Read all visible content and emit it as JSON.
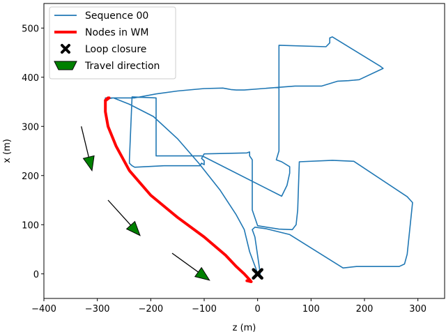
{
  "chart_data": {
    "type": "line",
    "title": "",
    "xlabel": "z (m)",
    "ylabel": "x (m)",
    "xlim": [
      -400,
      350
    ],
    "ylim": [
      -50,
      550
    ],
    "xticks": [
      -400,
      -300,
      -200,
      -100,
      0,
      100,
      200,
      300
    ],
    "yticks": [
      0,
      100,
      200,
      300,
      400,
      500
    ],
    "grid": false,
    "legend_position": "top-left",
    "colors": {
      "sequence": "#1f77b4",
      "nodes": "#ff0000",
      "loop": "#000000",
      "arrow_fill": "#008000",
      "arrow_stroke": "#000000"
    },
    "legend": [
      {
        "label": "Sequence 00",
        "kind": "line"
      },
      {
        "label": "Nodes in WM",
        "kind": "thick-line"
      },
      {
        "label": "Loop closure",
        "kind": "x-marker"
      },
      {
        "label": "Travel direction",
        "kind": "patch"
      }
    ],
    "series": [
      {
        "name": "Sequence 00",
        "x": [
          0,
          -3,
          -15,
          -25,
          -40,
          -70,
          -110,
          -150,
          -195,
          -240,
          -270,
          -285,
          -285,
          -275,
          -230,
          -190,
          -150,
          -100,
          -65,
          -55,
          -50,
          -40,
          -30,
          -25,
          70,
          120,
          150,
          170,
          190,
          235,
          230,
          140,
          135,
          135,
          128,
          40,
          40,
          35,
          40,
          45,
          60,
          60,
          55,
          45,
          -100,
          -105,
          -190,
          -190,
          -235,
          -240,
          -240,
          -235,
          -230,
          -175,
          -108,
          -105,
          -100,
          -100,
          -105,
          -100,
          -20,
          -15,
          -15,
          -10,
          -10,
          0,
          40,
          65,
          72,
          75,
          78,
          140,
          180,
          280,
          290,
          280,
          275,
          265,
          185,
          160,
          60,
          15,
          -5,
          -10,
          -5,
          5
        ],
        "y": [
          0,
          10,
          45,
          90,
          120,
          170,
          225,
          275,
          320,
          345,
          358,
          355,
          358,
          358,
          358,
          366,
          372,
          377,
          378,
          376,
          375,
          374,
          374,
          374,
          382,
          382,
          392,
          393,
          395,
          418,
          422,
          482,
          480,
          470,
          462,
          465,
          250,
          232,
          230,
          228,
          218,
          205,
          180,
          158,
          238,
          240,
          240,
          358,
          360,
          232,
          225,
          220,
          217,
          220,
          220,
          225,
          222,
          230,
          235,
          244,
          246,
          248,
          240,
          232,
          130,
          98,
          91,
          90,
          100,
          130,
          228,
          231,
          229,
          157,
          145,
          40,
          20,
          15,
          15,
          12,
          80,
          92,
          95,
          90,
          75,
          0
        ]
      },
      {
        "name": "Nodes in WM",
        "x": [
          -285,
          -280,
          -278,
          -285,
          -285,
          -280,
          -265,
          -240,
          -200,
          -150,
          -100,
          -60,
          -40,
          -25,
          -15,
          -12,
          -20
        ],
        "y": [
          353,
          358,
          358,
          352,
          330,
          300,
          260,
          210,
          160,
          115,
          75,
          38,
          15,
          0,
          -12,
          -16,
          -14
        ]
      }
    ],
    "loop_closures": [
      {
        "x": 0,
        "y": 0
      }
    ],
    "travel_direction_arrows": [
      {
        "x": -330,
        "y": 300,
        "dx": 20,
        "dy": -90
      },
      {
        "x": -280,
        "y": 150,
        "dx": 60,
        "dy": -72
      },
      {
        "x": -160,
        "y": 42,
        "dx": 70,
        "dy": -55
      }
    ]
  }
}
